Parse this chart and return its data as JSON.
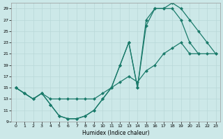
{
  "xlabel": "Humidex (Indice chaleur)",
  "bg_color": "#cce8e8",
  "grid_color": "#b8d8d8",
  "line_color": "#1a7a6a",
  "xlim": [
    -0.5,
    23.5
  ],
  "ylim": [
    9,
    30
  ],
  "xticks": [
    0,
    1,
    2,
    3,
    4,
    5,
    6,
    7,
    8,
    9,
    10,
    11,
    12,
    13,
    14,
    15,
    16,
    17,
    18,
    19,
    20,
    21,
    22,
    23
  ],
  "yticks": [
    9,
    11,
    13,
    15,
    17,
    19,
    21,
    23,
    25,
    27,
    29
  ],
  "series1_x": [
    0,
    1,
    2,
    3,
    4,
    5,
    6,
    7,
    8,
    9,
    10,
    11,
    12,
    13,
    14,
    15,
    16,
    17,
    18,
    19,
    20,
    21
  ],
  "series1_y": [
    15,
    14,
    13,
    14,
    12,
    10,
    9.5,
    9.5,
    10,
    11,
    13,
    15,
    19,
    23,
    15,
    27,
    29,
    29,
    29,
    27,
    23,
    21
  ],
  "series2_x": [
    0,
    1,
    2,
    3,
    4,
    5,
    6,
    7,
    8,
    9,
    10,
    11,
    12,
    13,
    14,
    15,
    16,
    17,
    18,
    19,
    20,
    21,
    22,
    23
  ],
  "series2_y": [
    15,
    14,
    13,
    14,
    12,
    10,
    9.5,
    9.5,
    10,
    11,
    13,
    15,
    19,
    23,
    15,
    26,
    29,
    29,
    30,
    29,
    27,
    25,
    23,
    21
  ],
  "series3_x": [
    0,
    1,
    2,
    3,
    4,
    5,
    6,
    7,
    8,
    9,
    10,
    11,
    12,
    13,
    14,
    15,
    16,
    17,
    18,
    19,
    20,
    21,
    22,
    23
  ],
  "series3_y": [
    15,
    14,
    13,
    14,
    13,
    13,
    13,
    13,
    13,
    13,
    14,
    15,
    16,
    17,
    16,
    18,
    19,
    21,
    22,
    23,
    21,
    21,
    21,
    21
  ]
}
